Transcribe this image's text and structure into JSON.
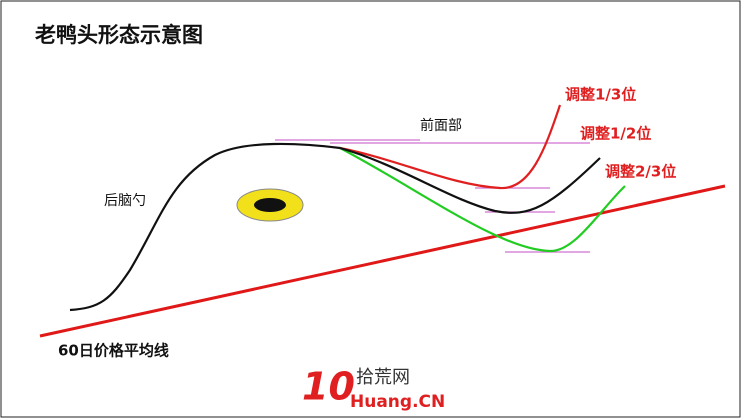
{
  "title": "老鸭头形态示意图",
  "labels": {
    "back_head": "后脑勺",
    "front_face": "前面部",
    "adjust_1_3": "调整1/3位",
    "adjust_1_2": "调整1/2位",
    "adjust_2_3": "调整2/3位",
    "moving_average": "60日价格平均线"
  },
  "logo": {
    "number": "10",
    "name": "拾荒网",
    "domain": "Huang.CN"
  }
}
